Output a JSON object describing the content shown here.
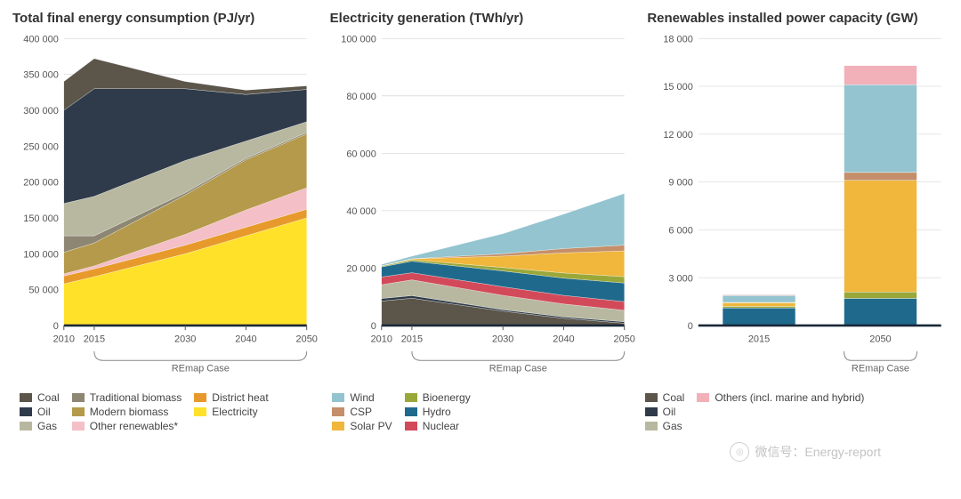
{
  "background_color": "#ffffff",
  "grid_color": "#cccccc",
  "text_color": "#555555",
  "title_fontsize": 15,
  "tick_fontsize": 11,
  "chart1": {
    "type": "stacked_area",
    "title": "Total final energy consumption (PJ/yr)",
    "x_labels": [
      "2010",
      "2015",
      "2030",
      "2040",
      "2050"
    ],
    "x_vals": [
      2010,
      2015,
      2030,
      2040,
      2050
    ],
    "ylim": [
      0,
      400000
    ],
    "ytick_step": 50000,
    "y_ticks": [
      0,
      50000,
      100000,
      150000,
      200000,
      250000,
      300000,
      350000,
      400000
    ],
    "y_ticklabels": [
      "0",
      "50 000",
      "100 000",
      "150 000",
      "200 000",
      "250 000",
      "300 000",
      "350 000",
      "400 000"
    ],
    "remap_label": "REmap Case",
    "series_order_bottom_to_top": [
      "Electricity",
      "District heat",
      "Other renewables",
      "Modern biomass",
      "Traditional biomass",
      "Gas",
      "Oil",
      "Coal"
    ],
    "series": {
      "Electricity": {
        "color": "#ffe12a",
        "values": [
          58000,
          68000,
          100000,
          125000,
          150000
        ]
      },
      "District heat": {
        "color": "#e79a2b",
        "values": [
          11000,
          11000,
          12000,
          12000,
          12000
        ]
      },
      "Other renewables": {
        "color": "#f4bfc6",
        "values": [
          3000,
          4000,
          15000,
          24000,
          30000
        ]
      },
      "Modern biomass": {
        "color": "#b49a4a",
        "values": [
          30000,
          32000,
          55000,
          70000,
          75000
        ]
      },
      "Traditional biomass": {
        "color": "#8c8673",
        "values": [
          23000,
          10000,
          3000,
          2000,
          2000
        ]
      },
      "Gas": {
        "color": "#b8b8a0",
        "values": [
          45000,
          55000,
          45000,
          24000,
          15000
        ]
      },
      "Oil": {
        "color": "#2f3b4a",
        "values": [
          130000,
          150000,
          100000,
          65000,
          45000
        ]
      },
      "Coal": {
        "color": "#5b554a",
        "values": [
          40000,
          42000,
          10000,
          6000,
          5000
        ]
      }
    }
  },
  "chart2": {
    "type": "stacked_area",
    "title": "Electricity generation (TWh/yr)",
    "x_labels": [
      "2010",
      "2015",
      "2030",
      "2040",
      "2050"
    ],
    "x_vals": [
      2010,
      2015,
      2030,
      2040,
      2050
    ],
    "ylim": [
      0,
      100000
    ],
    "ytick_step": 20000,
    "y_ticks": [
      0,
      20000,
      40000,
      60000,
      80000,
      100000
    ],
    "y_ticklabels": [
      "0",
      "20 000",
      "40 000",
      "60 000",
      "80 000",
      "100 000"
    ],
    "remap_label": "REmap Case",
    "series_order_bottom_to_top": [
      "Coal",
      "Oil",
      "Gas",
      "Nuclear",
      "Hydro",
      "Bioenergy",
      "Solar PV",
      "CSP",
      "Wind"
    ],
    "series": {
      "Coal": {
        "color": "#5b554a",
        "values": [
          8500,
          9500,
          5000,
          2500,
          800
        ]
      },
      "Oil": {
        "color": "#2f3b4a",
        "values": [
          900,
          900,
          500,
          500,
          500
        ]
      },
      "Gas": {
        "color": "#b8b8a0",
        "values": [
          4800,
          5500,
          5000,
          4500,
          4000
        ]
      },
      "Nuclear": {
        "color": "#d24a5a",
        "values": [
          2700,
          2500,
          3000,
          3000,
          3000
        ]
      },
      "Hydro": {
        "color": "#1f6a8c",
        "values": [
          3500,
          4000,
          5500,
          6000,
          6500
        ]
      },
      "Bioenergy": {
        "color": "#9aa83a",
        "values": [
          300,
          500,
          1200,
          1800,
          2200
        ]
      },
      "Solar PV": {
        "color": "#f0b73c",
        "values": [
          100,
          300,
          4000,
          7000,
          9000
        ]
      },
      "CSP": {
        "color": "#c48f6a",
        "values": [
          0,
          50,
          800,
          1500,
          2000
        ]
      },
      "Wind": {
        "color": "#93c4cf",
        "values": [
          500,
          900,
          7000,
          12000,
          18000
        ]
      }
    }
  },
  "chart3": {
    "type": "stacked_bar",
    "title": "Renewables installed power capacity (GW)",
    "categories": [
      "2015",
      "2050"
    ],
    "ylim": [
      0,
      18000
    ],
    "ytick_step": 3000,
    "y_ticks": [
      0,
      3000,
      6000,
      9000,
      12000,
      15000,
      18000
    ],
    "y_ticklabels": [
      "0",
      "3 000",
      "6 000",
      "9 000",
      "12 000",
      "15 000",
      "18 000"
    ],
    "remap_label": "REmap Case",
    "bar_width": 0.6,
    "series_order_bottom_to_top": [
      "Hydro",
      "Bioenergy",
      "Solar PV",
      "CSP",
      "Wind",
      "Others"
    ],
    "series": {
      "Hydro": {
        "color": "#1f6a8c",
        "values": [
          1100,
          1700
        ]
      },
      "Bioenergy": {
        "color": "#9aa83a",
        "values": [
          100,
          400
        ]
      },
      "Solar PV": {
        "color": "#f0b73c",
        "values": [
          225,
          7000
        ]
      },
      "CSP": {
        "color": "#c48f6a",
        "values": [
          25,
          500
        ]
      },
      "Wind": {
        "color": "#93c4cf",
        "values": [
          430,
          5500
        ]
      },
      "Others": {
        "color": "#f2b0b8",
        "values": [
          50,
          1200
        ]
      }
    }
  },
  "legend1": {
    "columns": [
      [
        {
          "label": "Coal",
          "color": "#5b554a"
        },
        {
          "label": "Oil",
          "color": "#2f3b4a"
        },
        {
          "label": "Gas",
          "color": "#b8b8a0"
        }
      ],
      [
        {
          "label": "Traditional biomass",
          "color": "#8c8673"
        },
        {
          "label": "Modern biomass",
          "color": "#b49a4a"
        },
        {
          "label": "Other renewables*",
          "color": "#f4bfc6"
        }
      ],
      [
        {
          "label": "District heat",
          "color": "#e79a2b"
        },
        {
          "label": "Electricity",
          "color": "#ffe12a"
        }
      ]
    ]
  },
  "legend2": {
    "columns": [
      [
        {
          "label": "Wind",
          "color": "#93c4cf"
        },
        {
          "label": "CSP",
          "color": "#c48f6a"
        },
        {
          "label": "Solar PV",
          "color": "#f0b73c"
        }
      ],
      [
        {
          "label": "Bioenergy",
          "color": "#9aa83a"
        },
        {
          "label": "Hydro",
          "color": "#1f6a8c"
        },
        {
          "label": "Nuclear",
          "color": "#d24a5a"
        }
      ]
    ]
  },
  "legend3": {
    "columns": [
      [
        {
          "label": "Coal",
          "color": "#5b554a"
        },
        {
          "label": "Oil",
          "color": "#2f3b4a"
        },
        {
          "label": "Gas",
          "color": "#b8b8a0"
        }
      ],
      [
        {
          "label": "Others (incl. marine and hybrid)",
          "color": "#f2b0b8"
        }
      ]
    ]
  },
  "watermark": {
    "text": "微信号：Energy-report"
  }
}
